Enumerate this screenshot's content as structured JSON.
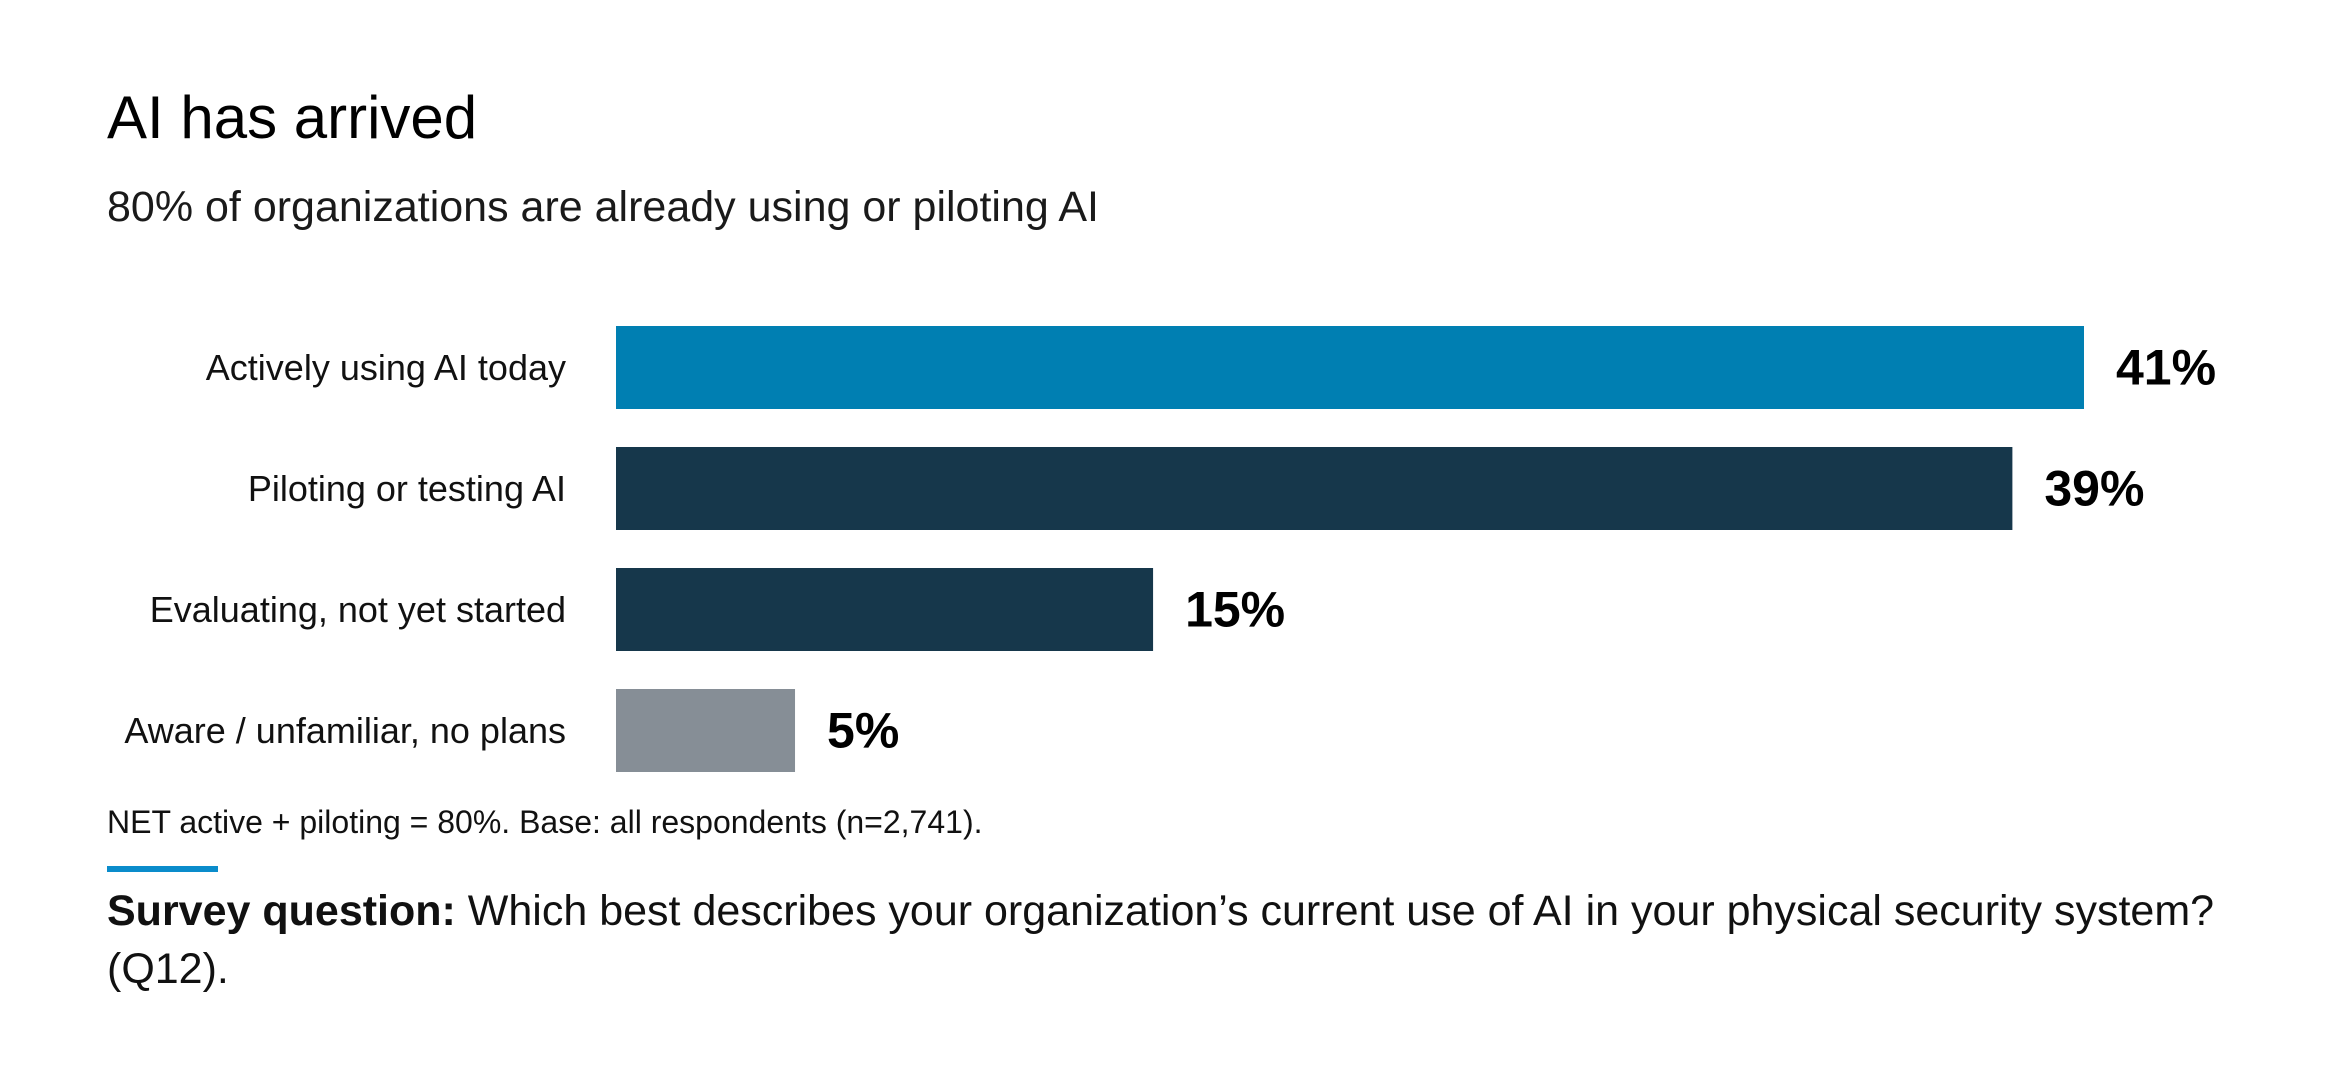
{
  "header": {
    "title": "AI has arrived",
    "subtitle": "80% of organizations are already using or piloting AI"
  },
  "chart_data": {
    "type": "bar",
    "orientation": "horizontal",
    "categories": [
      "Actively using AI today",
      "Piloting or testing AI",
      "Evaluating, not yet started",
      "Aware / unfamiliar, no plans"
    ],
    "values": [
      41,
      39,
      15,
      5
    ],
    "value_labels": [
      "41%",
      "39%",
      "15%",
      "5%"
    ],
    "colors": [
      "#007fb2",
      "#16374b",
      "#16374b",
      "#868e96"
    ],
    "xlim": [
      0,
      41
    ],
    "grid": false,
    "legend": "none"
  },
  "footer": {
    "note": "NET active + piloting = 80%. Base: all respondents (n=2,741).",
    "question_label": "Survey question:",
    "question_text": " Which best describes your organization’s current use of AI in your physical security system? (Q12)."
  }
}
